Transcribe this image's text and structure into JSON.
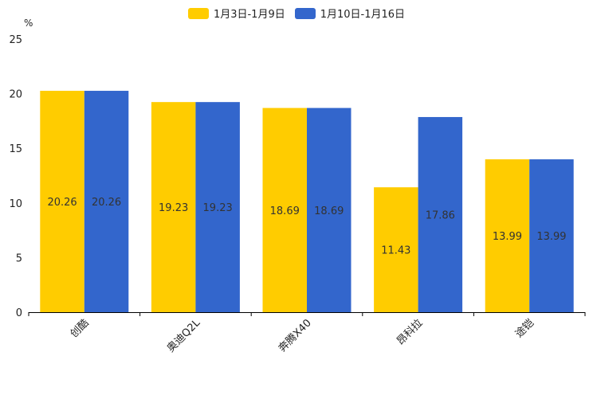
{
  "chart_data": {
    "type": "bar",
    "title": "",
    "unit_label": "%",
    "xlabel": "",
    "ylabel": "%",
    "ylim": [
      0,
      25
    ],
    "yticks": [
      0,
      5,
      10,
      15,
      20,
      25
    ],
    "categories": [
      "创酷",
      "奥迪Q2L",
      "奔腾X40",
      "昂科拉",
      "途铠"
    ],
    "series": [
      {
        "name": "1月3日-1月9日",
        "color": "#FFCC00",
        "values": [
          20.26,
          19.23,
          18.69,
          11.43,
          13.99
        ]
      },
      {
        "name": "1月10日-1月16日",
        "color": "#3366CC",
        "values": [
          20.26,
          19.23,
          18.69,
          17.86,
          13.99
        ]
      }
    ],
    "legend_position": "top-center",
    "grid": false
  }
}
